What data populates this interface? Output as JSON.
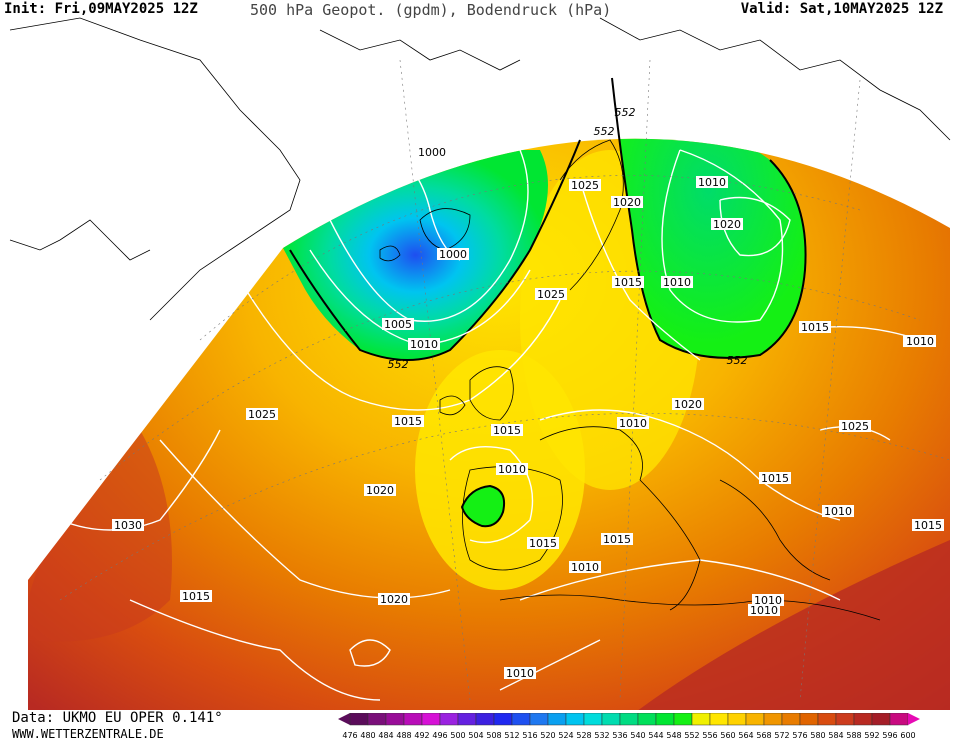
{
  "header": {
    "init": "Init: Fri,09MAY2025 12Z",
    "title": "500 hPa Geopot. (gpdm), Bodendruck (hPa)",
    "valid": "Valid: Sat,10MAY2025 12Z"
  },
  "footer": {
    "data_source": "Data: UKMO EU OPER 0.141°",
    "website": "WWW.WETTERZENTRALE.DE"
  },
  "colors": {
    "geopotential_levels": [
      476,
      480,
      484,
      488,
      492,
      496,
      500,
      504,
      508,
      512,
      516,
      520,
      524,
      528,
      532,
      536,
      540,
      544,
      548,
      552,
      556,
      560,
      564,
      568,
      572,
      576,
      580,
      584,
      588,
      592,
      596,
      600
    ],
    "geopotential_colors": [
      "#5a0c5a",
      "#7a0f7a",
      "#980c98",
      "#b80cb8",
      "#d611d6",
      "#9a22e0",
      "#6420e0",
      "#3c20e0",
      "#1f28f0",
      "#1e50f0",
      "#1e78f0",
      "#0aa0f0",
      "#00c4f0",
      "#00dcdc",
      "#00dcb0",
      "#00dc82",
      "#00e05a",
      "#00e632",
      "#14f014",
      "#f0f000",
      "#ffe600",
      "#ffd200",
      "#f8b400",
      "#f09600",
      "#e87c00",
      "#e06400",
      "#d84c10",
      "#cc3c1e",
      "#b82a22",
      "#a41e28",
      "#c80a80",
      "#e60ab4"
    ],
    "isobar": "#ffffff",
    "coastline": "#000000",
    "contour_552": "#000000"
  },
  "map": {
    "isobar_labels": [
      "1000",
      "1000",
      "1005",
      "1010",
      "1015",
      "1020",
      "1025",
      "1030",
      "1015",
      "1020",
      "1025",
      "1020",
      "1025",
      "1015",
      "1010",
      "1020",
      "1010",
      "1015",
      "1020",
      "1010",
      "1015",
      "1010",
      "1015",
      "1015",
      "1010",
      "1010",
      "1010",
      "1015",
      "1010",
      "1020",
      "1025",
      "1015",
      "1010",
      "1010"
    ],
    "contour_labels": [
      "552",
      "552",
      "552",
      "552"
    ]
  }
}
